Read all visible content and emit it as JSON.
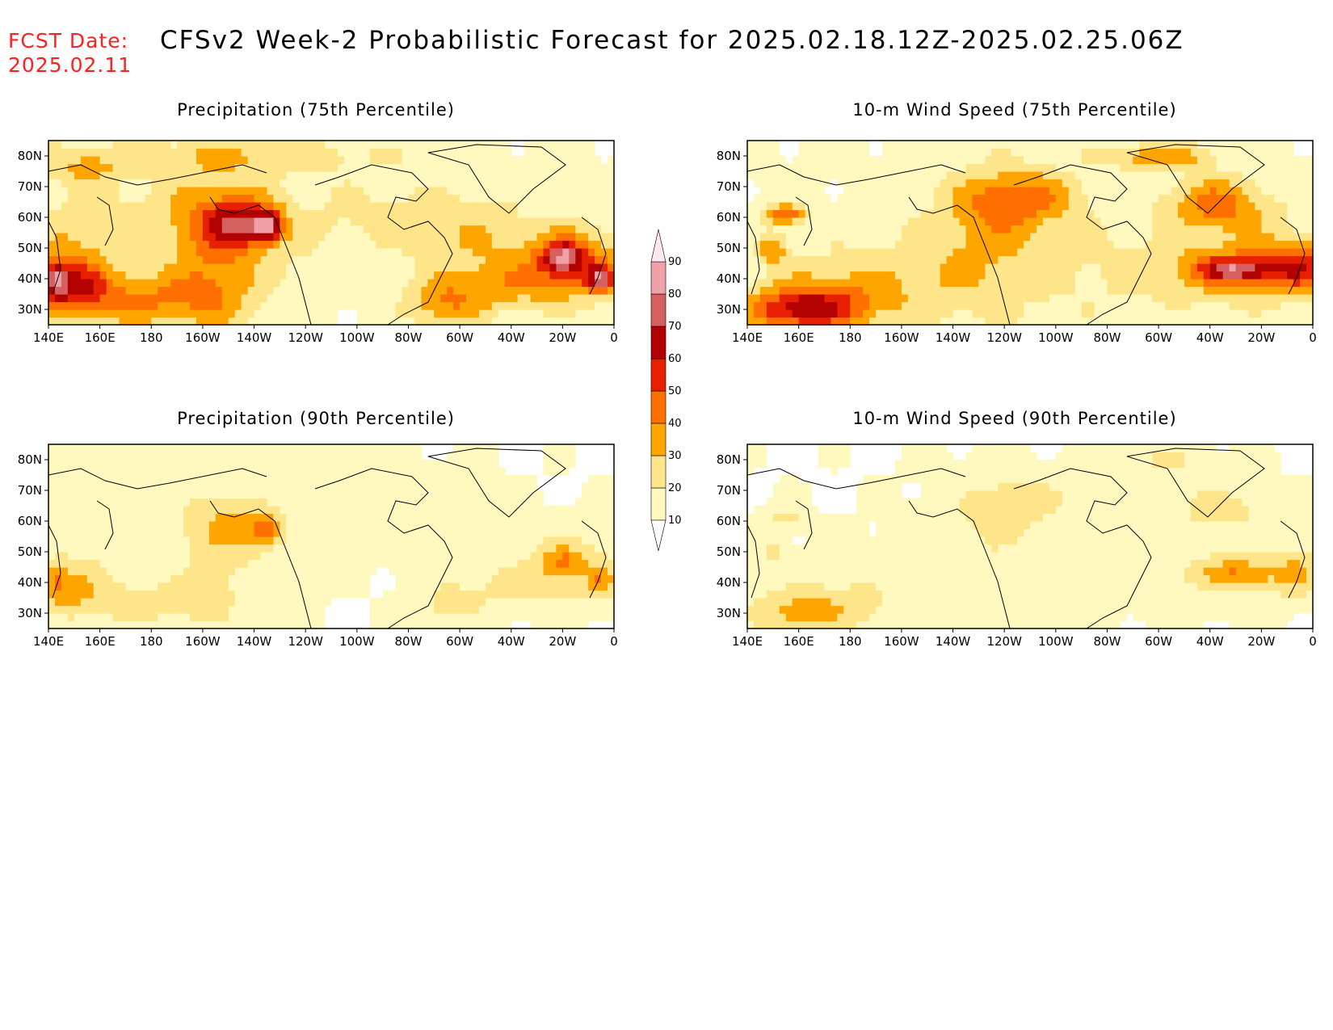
{
  "header": {
    "fcst_label": "FCST Date:",
    "fcst_date": "2025.02.11",
    "title": "CFSv2 Week-2 Probabilistic Forecast for 2025.02.18.12Z-2025.02.25.06Z"
  },
  "lat_labels": [
    "80N",
    "70N",
    "60N",
    "50N",
    "40N",
    "30N"
  ],
  "lon_labels": [
    "140E",
    "160E",
    "180",
    "160W",
    "140W",
    "120W",
    "100W",
    "80W",
    "60W",
    "40W",
    "20W",
    "0"
  ],
  "panels": [
    {
      "title": "Precipitation (75th Percentile)",
      "intensity": 1.0,
      "variable": "precip"
    },
    {
      "title": "10-m Wind Speed (75th Percentile)",
      "intensity": 1.0,
      "variable": "wind"
    },
    {
      "title": "Precipitation (90th Percentile)",
      "intensity": 0.45,
      "variable": "precip"
    },
    {
      "title": "10-m Wind Speed (90th Percentile)",
      "intensity": 0.45,
      "variable": "wind"
    }
  ],
  "colorbar": {
    "levels": [
      "10",
      "20",
      "30",
      "40",
      "50",
      "60",
      "70",
      "80",
      "90"
    ],
    "colors": [
      "#fff9c0",
      "#ffe58a",
      "#ffa500",
      "#ff7000",
      "#e62000",
      "#b30000",
      "#d46060",
      "#f0a0a8",
      "#ffe8ee"
    ]
  }
}
